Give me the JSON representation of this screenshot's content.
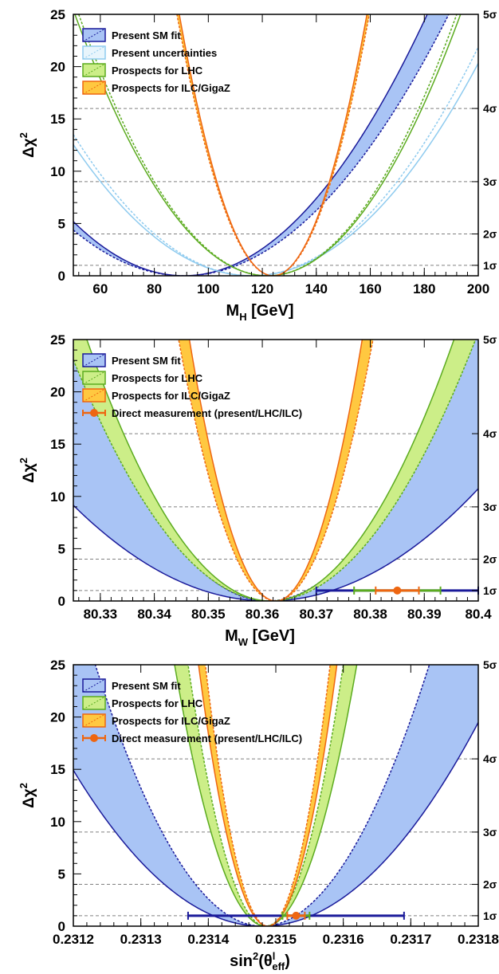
{
  "colors": {
    "sm_line": "#1a1a9a",
    "sm_band": "#a9c4f5",
    "unc_line": "#8fcbef",
    "lhc_line": "#5bab1f",
    "lhc_band": "#ccee88",
    "ilc_line": "#ee6611",
    "ilc_band": "#ffc840",
    "grid": "#808080"
  },
  "chart_data": [
    {
      "type": "line",
      "id": "mh",
      "xlabel": "M",
      "xlabel_sub": "H",
      "xlabel_unit": " [GeV]",
      "ylabel": "Δχ",
      "ylabel_sup": "2",
      "xlim": [
        50,
        200
      ],
      "ylim": [
        0,
        25
      ],
      "xticks": [
        60,
        80,
        100,
        120,
        140,
        160,
        180,
        200
      ],
      "xtick_labels": [
        "60",
        "80",
        "100",
        "120",
        "140",
        "160",
        "180",
        "200"
      ],
      "yticks": [
        0,
        5,
        10,
        15,
        20,
        25
      ],
      "sigma_levels": [
        1,
        4,
        9,
        16,
        25
      ],
      "sigma_labels": [
        "1σ",
        "2σ",
        "3σ",
        "4σ",
        "5σ"
      ],
      "legend_position": "top-left",
      "legend": [
        {
          "label": "Present SM fit",
          "style": "sm"
        },
        {
          "label": "Present uncertainties",
          "style": "unc"
        },
        {
          "label": "Prospects for LHC",
          "style": "lhc"
        },
        {
          "label": "Prospects for ILC/GigaZ",
          "style": "ilc"
        }
      ],
      "series": [
        {
          "name": "Present SM fit",
          "style": "sm",
          "kind": "band",
          "center": 91,
          "lower_curvature": 0.00308,
          "upper_curvature": 0.0026
        },
        {
          "name": "Present uncertainties",
          "style": "unc",
          "kind": "pair",
          "center": 116,
          "lower_curvature": 0.00288,
          "upper_curvature": 0.0031
        },
        {
          "name": "Prospects for LHC",
          "style": "lhc",
          "kind": "pair",
          "center": 122,
          "lower_curvature": 0.0049,
          "upper_curvature": 0.0051
        },
        {
          "name": "Prospects for ILC/GigaZ",
          "style": "ilc",
          "kind": "band",
          "center": 124,
          "lower_curvature": 0.0207,
          "upper_curvature": 0.0197
        }
      ]
    },
    {
      "type": "line",
      "id": "mw",
      "xlabel": "M",
      "xlabel_sub": "W",
      "xlabel_unit": " [GeV]",
      "ylabel": "Δχ",
      "ylabel_sup": "2",
      "xlim": [
        80.325,
        80.4
      ],
      "ylim": [
        0,
        25
      ],
      "xticks": [
        80.33,
        80.34,
        80.35,
        80.36,
        80.37,
        80.38,
        80.39,
        80.4
      ],
      "xtick_labels": [
        "80.33",
        "80.34",
        "80.35",
        "80.36",
        "80.37",
        "80.38",
        "80.39",
        "80.4"
      ],
      "yticks": [
        0,
        5,
        10,
        15,
        20,
        25
      ],
      "sigma_levels": [
        1,
        4,
        9,
        16,
        25
      ],
      "sigma_labels": [
        "1σ",
        "2σ",
        "3σ",
        "4σ",
        "5σ"
      ],
      "legend_position": "top-left",
      "legend": [
        {
          "label": "Present SM fit",
          "style": "sm"
        },
        {
          "label": "Prospects for LHC",
          "style": "lhc"
        },
        {
          "label": "Prospects for ILC/GigaZ",
          "style": "ilc"
        },
        {
          "label": "Direct measurement (present/LHC/ILC)",
          "style": "meas"
        }
      ],
      "series": [
        {
          "name": "Present SM fit",
          "style": "sm",
          "kind": "band",
          "center": 80.361,
          "lower_sigma": 0.0119,
          "upper_sigma": 0.0072
        },
        {
          "name": "Prospects for LHC",
          "style": "lhc",
          "kind": "band",
          "center": 80.3615,
          "lower_sigma": 0.0068,
          "upper_sigma": 0.0076
        },
        {
          "name": "Prospects for ILC/GigaZ",
          "style": "ilc",
          "kind": "band",
          "center": 80.3625,
          "lower_sigma": 0.0032,
          "upper_sigma": 0.0036
        }
      ],
      "measurement": {
        "value": 80.385,
        "y": 1,
        "errors": [
          0.015,
          0.008,
          0.004
        ]
      }
    },
    {
      "type": "line",
      "id": "sw",
      "xlabel": "sin",
      "xlabel_sup": "2",
      "xlabel_rest": "(θ",
      "xlabel_sup2": "l",
      "xlabel_sub2": "eff",
      "xlabel_end": ")",
      "ylabel": "Δχ",
      "ylabel_sup": "2",
      "xlim": [
        0.2312,
        0.2318
      ],
      "ylim": [
        0,
        25
      ],
      "xticks": [
        0.2312,
        0.2313,
        0.2314,
        0.2315,
        0.2316,
        0.2317,
        0.2318
      ],
      "xtick_labels": [
        "0.2312",
        "0.2313",
        "0.2314",
        "0.2315",
        "0.2316",
        "0.2317",
        "0.2318"
      ],
      "yticks": [
        0,
        5,
        10,
        15,
        20,
        25
      ],
      "sigma_levels": [
        1,
        4,
        9,
        16,
        25
      ],
      "sigma_labels": [
        "1σ",
        "2σ",
        "3σ",
        "4σ",
        "5σ"
      ],
      "legend_position": "top-left",
      "legend": [
        {
          "label": "Present SM fit",
          "style": "sm"
        },
        {
          "label": "Prospects for LHC",
          "style": "lhc"
        },
        {
          "label": "Prospects for ILC/GigaZ",
          "style": "ilc"
        },
        {
          "label": "Direct measurement (present/LHC/ILC)",
          "style": "meas"
        }
      ],
      "series": [
        {
          "name": "Present SM fit",
          "style": "sm",
          "kind": "band",
          "center": 0.23148,
          "lower_sigma": 7.25e-05,
          "upper_sigma": 4.95e-05
        },
        {
          "name": "Prospects for LHC",
          "style": "lhc",
          "kind": "band",
          "center": 0.231485,
          "lower_sigma": 2.7e-05,
          "upper_sigma": 2.3e-05
        },
        {
          "name": "Prospects for ILC/GigaZ",
          "style": "ilc",
          "kind": "band",
          "center": 0.231488,
          "lower_sigma": 2.05e-05,
          "upper_sigma": 1.85e-05
        }
      ],
      "measurement": {
        "value": 0.23153,
        "y": 1,
        "errors": [
          0.00016,
          2e-05,
          1.3e-05
        ]
      }
    }
  ]
}
